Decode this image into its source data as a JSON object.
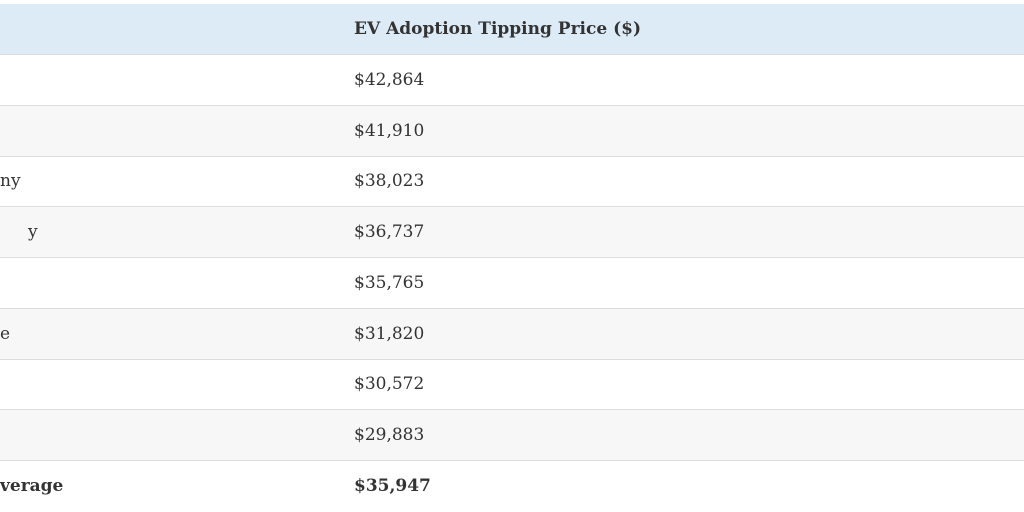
{
  "table": {
    "header": {
      "value": "EV Adoption Tipping Price ($)"
    },
    "rows": [
      {
        "value": "$42,864"
      },
      {
        "value": "$41,910"
      },
      {
        "label": "ny",
        "value": "$38,023"
      },
      {
        "label": "y",
        "value": "$36,737"
      },
      {
        "value": "$35,765"
      },
      {
        "label": "e",
        "value": "$31,820"
      },
      {
        "value": "$30,572"
      },
      {
        "value": "$29,883"
      },
      {
        "label": "verage",
        "value": "$35,947"
      }
    ]
  }
}
